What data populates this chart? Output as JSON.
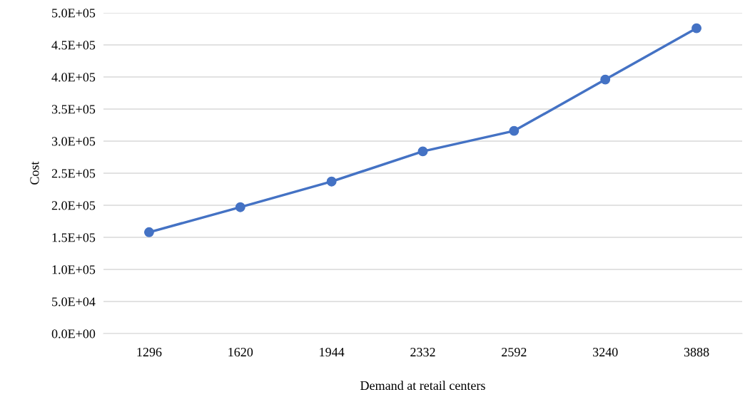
{
  "chart_data": {
    "type": "line",
    "xlabel": "Demand at retail centers",
    "ylabel": "Cost",
    "categories": [
      "1296",
      "1620",
      "1944",
      "2332",
      "2592",
      "3240",
      "3888"
    ],
    "series": [
      {
        "color": "#4472c4",
        "values": [
          158000,
          197000,
          237000,
          284000,
          316000,
          396000,
          476000
        ]
      }
    ],
    "ylim": [
      0,
      500000
    ],
    "yticks": [
      {
        "value": 0,
        "label": "0.0E+00"
      },
      {
        "value": 50000,
        "label": "5.0E+04"
      },
      {
        "value": 100000,
        "label": "1.0E+05"
      },
      {
        "value": 150000,
        "label": "1.5E+05"
      },
      {
        "value": 200000,
        "label": "2.0E+05"
      },
      {
        "value": 250000,
        "label": "2.5E+05"
      },
      {
        "value": 300000,
        "label": "3.0E+05"
      },
      {
        "value": 350000,
        "label": "3.5E+05"
      },
      {
        "value": 400000,
        "label": "4.0E+05"
      },
      {
        "value": 450000,
        "label": "4.5E+05"
      },
      {
        "value": 500000,
        "label": "5.0E+05"
      }
    ],
    "grid": "y",
    "marker": "circle",
    "line_style": "solid"
  }
}
